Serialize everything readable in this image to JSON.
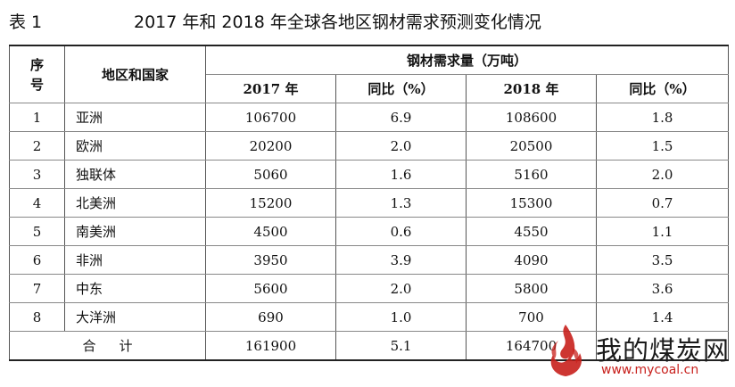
{
  "caption": {
    "label": "表 1",
    "title": "2017 年和 2018 年全球各地区钢材需求预测变化情况"
  },
  "table": {
    "headers": {
      "no": "序号",
      "region": "地区和国家",
      "group": "钢材需求量（万吨）",
      "y2017": "2017 年",
      "yoy2017": "同比（%）",
      "y2018": "2018 年",
      "yoy2018": "同比（%）"
    },
    "rows": [
      {
        "no": "1",
        "region": "亚洲",
        "v2017": "106700",
        "yoy2017": "6.9",
        "v2018": "108600",
        "yoy2018": "1.8"
      },
      {
        "no": "2",
        "region": "欧洲",
        "v2017": "20200",
        "yoy2017": "2.0",
        "v2018": "20500",
        "yoy2018": "1.5"
      },
      {
        "no": "3",
        "region": "独联体",
        "v2017": "5060",
        "yoy2017": "1.6",
        "v2018": "5160",
        "yoy2018": "2.0"
      },
      {
        "no": "4",
        "region": "北美洲",
        "v2017": "15200",
        "yoy2017": "1.3",
        "v2018": "15300",
        "yoy2018": "0.7"
      },
      {
        "no": "5",
        "region": "南美洲",
        "v2017": "4500",
        "yoy2017": "0.6",
        "v2018": "4550",
        "yoy2018": "1.1"
      },
      {
        "no": "6",
        "region": "非洲",
        "v2017": "3950",
        "yoy2017": "3.9",
        "v2018": "4090",
        "yoy2018": "3.5"
      },
      {
        "no": "7",
        "region": "中东",
        "v2017": "5600",
        "yoy2017": "2.0",
        "v2018": "5800",
        "yoy2018": "3.6"
      },
      {
        "no": "8",
        "region": "大洋洲",
        "v2017": "690",
        "yoy2017": "1.0",
        "v2018": "700",
        "yoy2018": "1.4"
      }
    ],
    "total": {
      "label": "合计",
      "v2017": "161900",
      "yoy2017": "5.1",
      "v2018": "164700",
      "yoy2018": ""
    }
  },
  "watermark": {
    "name": "我的煤炭网",
    "url": "www.mycoal.cn",
    "accent_color": "#c8201c"
  }
}
